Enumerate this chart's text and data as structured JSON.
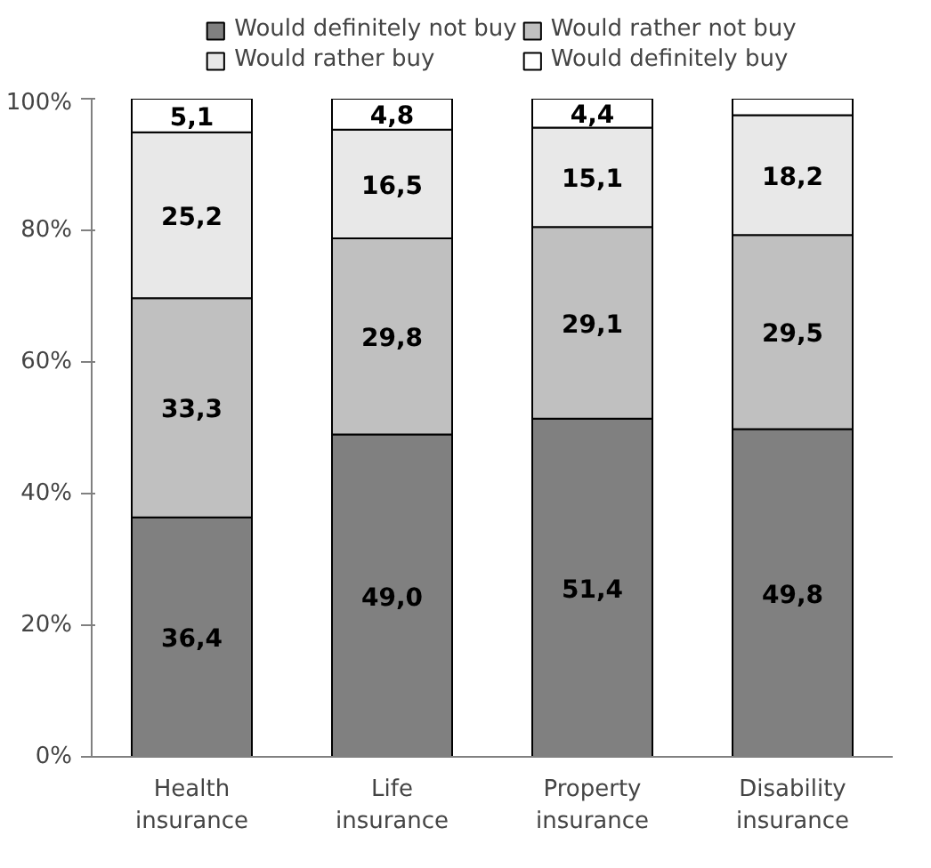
{
  "chart_data": {
    "type": "bar",
    "stacked": true,
    "categories": [
      "Health\ninsurance",
      "Life\ninsurance",
      "Property\ninsurance",
      "Disability\ninsurance"
    ],
    "series": [
      {
        "name": "Would definitely not buy",
        "color": "#808080",
        "values": [
          36.4,
          49.0,
          51.4,
          49.8
        ],
        "value_labels": [
          "36,4",
          "49,0",
          "51,4",
          "49,8"
        ]
      },
      {
        "name": "Would rather not buy",
        "color": "#c0c0c0",
        "values": [
          33.3,
          29.8,
          29.1,
          29.5
        ],
        "value_labels": [
          "33,3",
          "29,8",
          "29,1",
          "29,5"
        ]
      },
      {
        "name": "Would rather buy",
        "color": "#e8e8e8",
        "values": [
          25.2,
          16.5,
          15.1,
          18.2
        ],
        "value_labels": [
          "25,2",
          "16,5",
          "15,1",
          "18,2"
        ]
      },
      {
        "name": "Would definitely buy",
        "color": "#ffffff",
        "values": [
          5.1,
          4.8,
          4.4,
          2.5
        ],
        "value_labels": [
          "5,1",
          "4,8",
          "4,4",
          null
        ]
      }
    ],
    "ylim": [
      0,
      100
    ],
    "yticks": [
      {
        "value": 0,
        "label": "0%"
      },
      {
        "value": 20,
        "label": "20%"
      },
      {
        "value": 40,
        "label": "40%"
      },
      {
        "value": 60,
        "label": "60%"
      },
      {
        "value": 80,
        "label": "80%"
      },
      {
        "value": 100,
        "label": "100%"
      }
    ],
    "grid": false,
    "legend": "top"
  }
}
